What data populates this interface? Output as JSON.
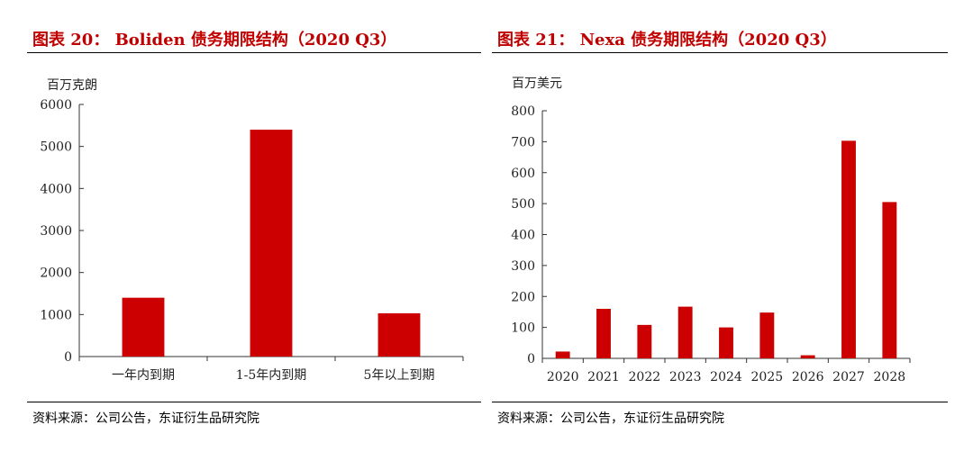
{
  "left": {
    "title": "图表 20： Boliden 债务期限结构（2020 Q3）",
    "source": "资料来源：公司公告，东证衍生品研究院",
    "chart_data": {
      "type": "bar",
      "title": "图表 20： Boliden 债务期限结构（2020 Q3）",
      "unit_label": "百万克朗",
      "categories": [
        "一年内到期",
        "1-5年内到期",
        "5年以上到期"
      ],
      "values": [
        1400,
        5400,
        1030
      ],
      "ylim": [
        0,
        6000
      ],
      "yticks": [
        0,
        1000,
        2000,
        3000,
        4000,
        5000,
        6000
      ],
      "bar_color": "#cc0000",
      "grid": false,
      "legend": "none"
    }
  },
  "right": {
    "title": "图表 21： Nexa 债务期限结构（2020 Q3）",
    "source": "资料来源：公司公告，东证衍生品研究院",
    "chart_data": {
      "type": "bar",
      "title": "图表 21： Nexa 债务期限结构（2020 Q3）",
      "unit_label": "百万美元",
      "categories": [
        "2020",
        "2021",
        "2022",
        "2023",
        "2024",
        "2025",
        "2026",
        "2027",
        "2028"
      ],
      "values": [
        22,
        160,
        108,
        167,
        100,
        148,
        10,
        703,
        505
      ],
      "ylim": [
        0,
        800
      ],
      "yticks": [
        0,
        100,
        200,
        300,
        400,
        500,
        600,
        700,
        800
      ],
      "bar_color": "#cc0000",
      "grid": false,
      "legend": "none"
    }
  }
}
